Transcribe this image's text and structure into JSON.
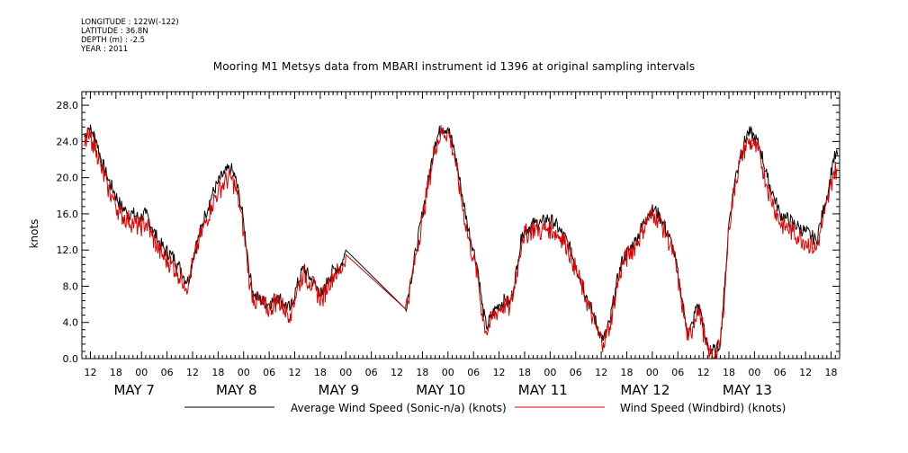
{
  "header": {
    "meta_lines": [
      "LONGITUDE : 122W(-122)",
      "LATITUDE : 36.8N",
      "DEPTH (m) : -2.5",
      "YEAR : 2011"
    ],
    "title": "Mooring M1 Metsys data from MBARI instrument id 1396 at original sampling intervals"
  },
  "chart_data": {
    "type": "line",
    "ylabel": "knots",
    "xlabel": "",
    "ylim": [
      0,
      29.5
    ],
    "yticks": [
      "0.0",
      "4.0",
      "8.0",
      "12.0",
      "16.0",
      "20.0",
      "24.0",
      "28.0"
    ],
    "xlim_hours": [
      -14,
      164
    ],
    "hour_tick_labels": [
      "00",
      "06",
      "12",
      "18"
    ],
    "day_labels": [
      {
        "label": "MAY  7",
        "center_hour": 0
      },
      {
        "label": "MAY  8",
        "center_hour": 24
      },
      {
        "label": "MAY  9",
        "center_hour": 48
      },
      {
        "label": "MAY 10",
        "center_hour": 72
      },
      {
        "label": "MAY 11",
        "center_hour": 96
      },
      {
        "label": "MAY 12",
        "center_hour": 120
      },
      {
        "label": "MAY 13",
        "center_hour": 144
      }
    ],
    "x_units_note": "hours relative to May 7 00:00",
    "series": [
      {
        "name": "Average Wind Speed (Sonic-n/a) (knots)",
        "color": "#000000",
        "points": [
          [
            -13.5,
            24.5
          ],
          [
            -12.5,
            25.5
          ],
          [
            -11.5,
            25
          ],
          [
            -10.5,
            24
          ],
          [
            -9.5,
            22
          ],
          [
            -8,
            20
          ],
          [
            -6.5,
            18.5
          ],
          [
            -5,
            17
          ],
          [
            -3.5,
            16.2
          ],
          [
            -2,
            16
          ],
          [
            -0.5,
            15.5
          ],
          [
            1,
            16
          ],
          [
            2.5,
            14.5
          ],
          [
            4,
            13
          ],
          [
            5.5,
            12
          ],
          [
            7,
            11.5
          ],
          [
            8.5,
            10.5
          ],
          [
            10,
            9
          ],
          [
            11,
            8.5
          ],
          [
            12,
            11
          ],
          [
            13.5,
            13.5
          ],
          [
            15,
            16
          ],
          [
            16.5,
            18
          ],
          [
            18,
            19.5
          ],
          [
            19.5,
            20.5
          ],
          [
            21,
            21
          ],
          [
            22,
            20
          ],
          [
            23,
            18
          ],
          [
            24,
            15
          ],
          [
            24.8,
            12
          ],
          [
            25.5,
            9
          ],
          [
            26.5,
            7
          ],
          [
            28,
            6.5
          ],
          [
            30,
            6
          ],
          [
            32,
            7
          ],
          [
            33.5,
            6
          ],
          [
            35,
            5.5
          ],
          [
            36.5,
            8
          ],
          [
            38,
            10
          ],
          [
            39.5,
            9
          ],
          [
            41,
            8
          ],
          [
            42.5,
            7
          ],
          [
            44,
            9
          ],
          [
            45.5,
            10
          ],
          [
            46.5,
            10
          ],
          [
            47.5,
            11
          ],
          [
            48,
            12
          ],
          [
            62,
            5.5
          ],
          [
            63,
            8
          ],
          [
            64.5,
            12
          ],
          [
            66,
            16
          ],
          [
            67.5,
            20
          ],
          [
            69,
            24
          ],
          [
            70.5,
            25.5
          ],
          [
            72,
            25.5
          ],
          [
            73.5,
            23
          ],
          [
            75,
            19
          ],
          [
            76.5,
            15
          ],
          [
            78,
            12
          ],
          [
            79,
            10
          ],
          [
            80,
            6
          ],
          [
            81,
            3.5
          ],
          [
            82.5,
            5
          ],
          [
            84,
            6
          ],
          [
            85.5,
            6.5
          ],
          [
            86.5,
            6
          ],
          [
            87.5,
            8
          ],
          [
            88.5,
            11
          ],
          [
            89.5,
            14
          ],
          [
            91,
            14.5
          ],
          [
            92.5,
            15
          ],
          [
            94,
            15
          ],
          [
            95.5,
            15.5
          ],
          [
            97,
            15
          ],
          [
            98.5,
            14
          ],
          [
            100,
            13
          ],
          [
            101.5,
            11
          ],
          [
            103,
            9
          ],
          [
            104.5,
            7
          ],
          [
            106,
            5
          ],
          [
            107.5,
            3
          ],
          [
            108.5,
            2
          ],
          [
            110,
            4
          ],
          [
            111.5,
            8
          ],
          [
            113,
            11
          ],
          [
            114.5,
            12
          ],
          [
            116,
            13
          ],
          [
            117.5,
            14.5
          ],
          [
            119,
            16
          ],
          [
            120.5,
            16.5
          ],
          [
            122,
            15.5
          ],
          [
            123.5,
            14
          ],
          [
            125,
            12
          ],
          [
            126.5,
            8
          ],
          [
            127.5,
            5
          ],
          [
            128.5,
            2.5
          ],
          [
            129.5,
            4
          ],
          [
            130.5,
            6
          ],
          [
            131.5,
            5
          ],
          [
            132.5,
            2
          ],
          [
            133.5,
            1
          ],
          [
            135,
            0.8
          ],
          [
            136,
            2
          ],
          [
            137,
            8
          ],
          [
            138,
            15
          ],
          [
            139.5,
            20
          ],
          [
            141,
            23
          ],
          [
            142.5,
            25
          ],
          [
            144,
            24.5
          ],
          [
            145.5,
            23
          ],
          [
            147,
            20
          ],
          [
            148.5,
            18
          ],
          [
            150,
            16
          ],
          [
            151.5,
            15.5
          ],
          [
            153,
            15
          ],
          [
            154.5,
            14.5
          ],
          [
            156,
            14
          ],
          [
            157.5,
            13.5
          ],
          [
            158.5,
            13
          ],
          [
            159.5,
            15
          ],
          [
            160.5,
            17
          ],
          [
            161.5,
            19
          ],
          [
            162.5,
            22
          ],
          [
            163.5,
            22.5
          ]
        ]
      },
      {
        "name": "Wind Speed (Windbird) (knots)",
        "color": "#dd0000",
        "points": [
          [
            -13.5,
            23.5
          ],
          [
            -12.5,
            24.5
          ],
          [
            -11.5,
            24
          ],
          [
            -10.5,
            23
          ],
          [
            -9.5,
            21
          ],
          [
            -8,
            19
          ],
          [
            -6.5,
            17.5
          ],
          [
            -5,
            16
          ],
          [
            -3.5,
            15.5
          ],
          [
            -2,
            15
          ],
          [
            -0.5,
            14.5
          ],
          [
            1,
            15
          ],
          [
            2.5,
            13.5
          ],
          [
            4,
            12
          ],
          [
            5.5,
            11
          ],
          [
            7,
            10.5
          ],
          [
            8.5,
            9.5
          ],
          [
            10,
            8.5
          ],
          [
            11,
            8
          ],
          [
            12,
            10.5
          ],
          [
            13.5,
            13
          ],
          [
            15,
            15
          ],
          [
            16.5,
            17
          ],
          [
            18,
            18.5
          ],
          [
            19.5,
            19.5
          ],
          [
            21,
            20
          ],
          [
            22,
            19
          ],
          [
            23,
            17
          ],
          [
            24,
            14
          ],
          [
            24.8,
            11
          ],
          [
            25.5,
            8
          ],
          [
            26.5,
            6.5
          ],
          [
            28,
            6
          ],
          [
            30,
            5.5
          ],
          [
            32,
            6.5
          ],
          [
            33.5,
            5.5
          ],
          [
            35,
            5
          ],
          [
            36.5,
            7.5
          ],
          [
            38,
            9.5
          ],
          [
            39.5,
            8.5
          ],
          [
            41,
            7.5
          ],
          [
            42.5,
            6.5
          ],
          [
            44,
            8.5
          ],
          [
            45.5,
            9.5
          ],
          [
            46.5,
            9.5
          ],
          [
            47.5,
            10.5
          ],
          [
            48,
            11.5
          ],
          [
            62,
            5.5
          ],
          [
            63,
            7.5
          ],
          [
            64.5,
            11.5
          ],
          [
            66,
            15.5
          ],
          [
            67.5,
            19.5
          ],
          [
            69,
            23.5
          ],
          [
            70.5,
            25
          ],
          [
            72,
            25
          ],
          [
            73.5,
            22.5
          ],
          [
            75,
            18
          ],
          [
            76.5,
            14
          ],
          [
            78,
            11
          ],
          [
            79,
            9
          ],
          [
            80,
            5
          ],
          [
            81,
            3
          ],
          [
            82.5,
            4.5
          ],
          [
            84,
            5.5
          ],
          [
            85.5,
            6
          ],
          [
            86.5,
            5.5
          ],
          [
            87.5,
            7.5
          ],
          [
            88.5,
            10.5
          ],
          [
            89.5,
            13.5
          ],
          [
            91,
            14
          ],
          [
            92.5,
            14.5
          ],
          [
            94,
            14
          ],
          [
            95.5,
            14.5
          ],
          [
            97,
            14
          ],
          [
            98.5,
            13.5
          ],
          [
            100,
            12.5
          ],
          [
            101.5,
            10.5
          ],
          [
            103,
            8.5
          ],
          [
            104.5,
            6.5
          ],
          [
            106,
            4.5
          ],
          [
            107.5,
            2.5
          ],
          [
            108.5,
            1.8
          ],
          [
            110,
            3.5
          ],
          [
            111.5,
            7.5
          ],
          [
            113,
            10.5
          ],
          [
            114.5,
            11.5
          ],
          [
            116,
            12.5
          ],
          [
            117.5,
            14
          ],
          [
            119,
            15.5
          ],
          [
            120.5,
            16
          ],
          [
            122,
            15
          ],
          [
            123.5,
            13.5
          ],
          [
            125,
            11.5
          ],
          [
            126.5,
            7.5
          ],
          [
            127.5,
            4.5
          ],
          [
            128.5,
            2
          ],
          [
            129.5,
            3.5
          ],
          [
            130.5,
            5.5
          ],
          [
            131.5,
            4.5
          ],
          [
            132.5,
            1.5
          ],
          [
            133.5,
            0.5
          ],
          [
            135,
            0.4
          ],
          [
            136,
            1.5
          ],
          [
            137,
            7.5
          ],
          [
            138,
            14.5
          ],
          [
            139.5,
            19.5
          ],
          [
            141,
            22.5
          ],
          [
            142.5,
            24
          ],
          [
            144,
            23.5
          ],
          [
            145.5,
            22
          ],
          [
            147,
            19
          ],
          [
            148.5,
            17
          ],
          [
            150,
            15
          ],
          [
            151.5,
            14.5
          ],
          [
            153,
            14
          ],
          [
            154.5,
            13.5
          ],
          [
            156,
            13
          ],
          [
            157.5,
            12.5
          ],
          [
            158.5,
            12
          ],
          [
            159.5,
            14
          ],
          [
            160.5,
            16
          ],
          [
            161.5,
            18
          ],
          [
            162.5,
            20.5
          ],
          [
            163.5,
            21
          ]
        ]
      }
    ]
  },
  "legend": {
    "items": [
      {
        "label": "Average Wind Speed (Sonic-n/a) (knots)",
        "color": "#000000"
      },
      {
        "label": "Wind Speed (Windbird) (knots)",
        "color": "#dd0000"
      }
    ]
  }
}
